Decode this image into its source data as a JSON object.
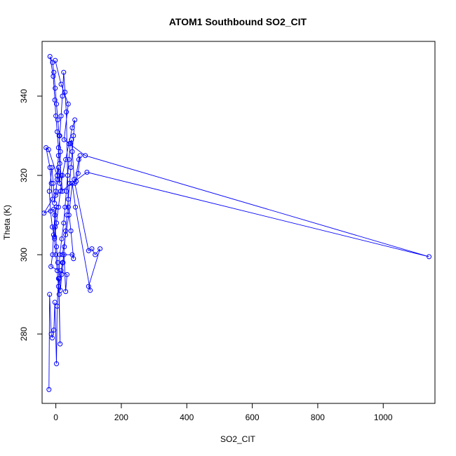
{
  "chart_data": {
    "type": "line",
    "title": "ATOM1 Southbound SO2_CIT",
    "xlabel": "SO2_CIT",
    "ylabel": "Theta (K)",
    "xlim": [
      -42,
      1158
    ],
    "ylim": [
      262.5,
      353.8
    ],
    "xticks": [
      0,
      200,
      400,
      600,
      800,
      1000
    ],
    "yticks": [
      280,
      300,
      320,
      340
    ],
    "grid": false,
    "legend": "none",
    "series_color": "#0000ff",
    "markers": "open-circle",
    "points": [
      [
        -21,
        266
      ],
      [
        -19,
        290
      ],
      [
        -14,
        280
      ],
      [
        -11,
        279
      ],
      [
        -6,
        281
      ],
      [
        -3,
        288
      ],
      [
        2,
        272.5
      ],
      [
        4,
        287
      ],
      [
        8,
        294
      ],
      [
        13,
        277.5
      ],
      [
        10,
        290
      ],
      [
        16,
        296
      ],
      [
        20,
        298
      ],
      [
        25,
        300
      ],
      [
        30,
        290.7
      ],
      [
        34,
        295
      ],
      [
        -15,
        297
      ],
      [
        -10,
        300
      ],
      [
        -7,
        305
      ],
      [
        -3,
        310
      ],
      [
        1,
        312
      ],
      [
        -4,
        304.5
      ],
      [
        -11,
        307
      ],
      [
        -16,
        311
      ],
      [
        -20,
        316
      ],
      [
        -12,
        322
      ],
      [
        -8,
        318
      ],
      [
        -4,
        313
      ],
      [
        0,
        316
      ],
      [
        4,
        319
      ],
      [
        8,
        322
      ],
      [
        12,
        318
      ],
      [
        14,
        326
      ],
      [
        10,
        330
      ],
      [
        6,
        334
      ],
      [
        2,
        338
      ],
      [
        -2,
        342
      ],
      [
        -6,
        346
      ],
      [
        -10,
        348.5
      ],
      [
        -18,
        350
      ],
      [
        -8,
        345
      ],
      [
        -3,
        339
      ],
      [
        0,
        335
      ],
      [
        4,
        331
      ],
      [
        8,
        327
      ],
      [
        12,
        323
      ],
      [
        16,
        320
      ],
      [
        20,
        316
      ],
      [
        -22,
        326.5
      ],
      [
        -30,
        327
      ],
      [
        -18,
        322
      ],
      [
        -14,
        318
      ],
      [
        -10,
        314
      ],
      [
        -36,
        310.5
      ],
      [
        -6,
        311.5
      ],
      [
        -2,
        307
      ],
      [
        2,
        302
      ],
      [
        6,
        298
      ],
      [
        10,
        294
      ],
      [
        14,
        291
      ],
      [
        18,
        295
      ],
      [
        22,
        298
      ],
      [
        26,
        302
      ],
      [
        30,
        306
      ],
      [
        34,
        310
      ],
      [
        38,
        314
      ],
      [
        42,
        318
      ],
      [
        46,
        322
      ],
      [
        50,
        326
      ],
      [
        54,
        330
      ],
      [
        58,
        334
      ],
      [
        50,
        332
      ],
      [
        40,
        328
      ],
      [
        30,
        324
      ],
      [
        20,
        320
      ],
      [
        14,
        316
      ],
      [
        8,
        312
      ],
      [
        2,
        308
      ],
      [
        -4,
        304
      ],
      [
        0,
        300
      ],
      [
        4,
        296
      ],
      [
        8,
        292
      ],
      [
        12,
        300
      ],
      [
        18,
        304
      ],
      [
        24,
        308
      ],
      [
        28,
        312
      ],
      [
        32,
        316
      ],
      [
        36,
        320
      ],
      [
        40,
        324
      ],
      [
        44,
        328
      ],
      [
        48,
        329
      ],
      [
        56,
        319
      ],
      [
        62,
        318.5
      ],
      [
        68,
        320.5
      ],
      [
        74,
        325
      ],
      [
        70,
        324
      ],
      [
        58,
        318
      ],
      [
        100,
        301
      ],
      [
        110,
        301.5
      ],
      [
        120,
        300
      ],
      [
        135,
        301.5
      ],
      [
        100,
        292
      ],
      [
        105,
        291
      ],
      [
        60,
        312
      ],
      [
        50,
        318
      ],
      [
        40,
        310
      ],
      [
        30,
        305
      ],
      [
        20,
        300
      ],
      [
        50,
        300
      ],
      [
        54,
        299
      ],
      [
        46,
        306
      ],
      [
        38,
        312
      ],
      [
        32,
        336
      ],
      [
        28,
        341
      ],
      [
        24,
        346
      ],
      [
        20,
        340
      ],
      [
        16,
        335
      ],
      [
        12,
        330
      ],
      [
        8,
        325
      ],
      [
        4,
        320
      ],
      [
        0,
        315
      ],
      [
        95,
        320.8
      ],
      [
        1140,
        299.5
      ],
      [
        90,
        325
      ],
      [
        25,
        329
      ],
      [
        38,
        338
      ],
      [
        16,
        343
      ],
      [
        -2,
        349
      ]
    ]
  }
}
